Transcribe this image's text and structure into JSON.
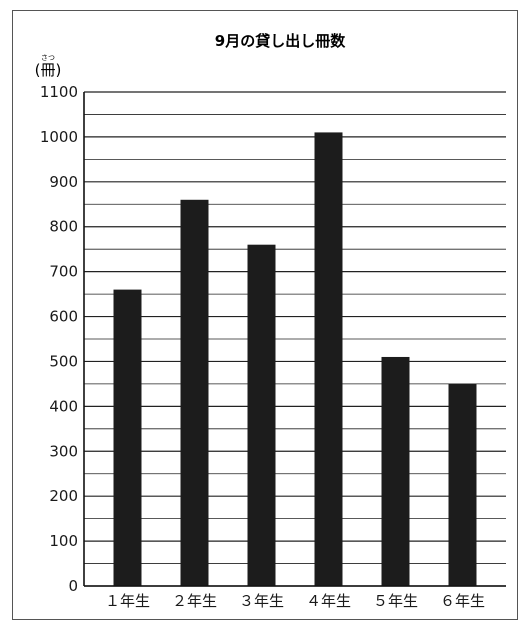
{
  "chart_data": {
    "type": "bar",
    "title": "9月の貸し出し冊数",
    "ylabel": "(冊)",
    "ylabel_ruby": "さつ",
    "xlabel": "",
    "categories": [
      "１年生",
      "２年生",
      "３年生",
      "４年生",
      "５年生",
      "６年生"
    ],
    "values": [
      660,
      860,
      760,
      1010,
      510,
      450
    ],
    "ylim": [
      0,
      1100
    ],
    "yticks": [
      0,
      100,
      200,
      300,
      400,
      500,
      600,
      700,
      800,
      900,
      1000,
      1100
    ],
    "ytick_labels": [
      "0",
      "100",
      "200",
      "300",
      "400",
      "500",
      "600",
      "700",
      "800",
      "900",
      "1000",
      "1100"
    ],
    "minor_gridlines_per_major": 2,
    "grid": true,
    "legend": "none",
    "bar_color": "#1c1c1c",
    "grid_color": "#222222"
  }
}
